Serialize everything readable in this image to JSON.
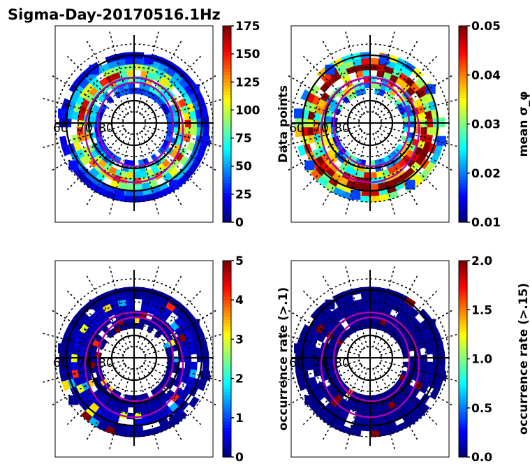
{
  "chart_data": {
    "title": "Sigma-Day-20170516.1Hz",
    "panels": [
      {
        "id": "data-points",
        "type": "heatmap",
        "projection": "polar-magnetic-lat-mlt",
        "colormap": "jet",
        "colorbar": {
          "label": "Data points",
          "vmin": 0,
          "vmax": 175,
          "ticks": [
            "0",
            "25",
            "50",
            "75",
            "100",
            "125",
            "150",
            "175"
          ]
        },
        "lat_labels": [
          "60",
          "70",
          "80"
        ],
        "auroral_oval": true,
        "annulus_values": [
          30,
          55,
          95,
          120,
          80,
          40,
          15
        ]
      },
      {
        "id": "mean-sigma-phi",
        "type": "heatmap",
        "projection": "polar-magnetic-lat-mlt",
        "colormap": "jet",
        "colorbar": {
          "label": "mean σ_φ",
          "vmin": 0.01,
          "vmax": 0.05,
          "ticks": [
            "0.01",
            "0.02",
            "0.03",
            "0.04",
            "0.05"
          ]
        },
        "lat_labels": [
          "60",
          "70",
          "80"
        ],
        "auroral_oval": true,
        "annulus_values": [
          0.022,
          0.028,
          0.034,
          0.04,
          0.046,
          0.036,
          0.03
        ]
      },
      {
        "id": "occurrence-rate-0.1",
        "type": "heatmap",
        "projection": "polar-magnetic-lat-mlt",
        "colormap": "jet",
        "colorbar": {
          "label": "occurrence rate (>.1)",
          "vmin": 0,
          "vmax": 5,
          "ticks": [
            "0",
            "1",
            "2",
            "3",
            "4",
            "5"
          ]
        },
        "lat_labels": [
          "60",
          "70",
          "80"
        ],
        "auroral_oval": true,
        "annulus_values": [
          0.1,
          0.1,
          0.2,
          0.3,
          0.4,
          0.2,
          0.1
        ],
        "hotspot_values": [
          5,
          4.2,
          3,
          1.5,
          5,
          3.3
        ]
      },
      {
        "id": "occurrence-rate-0.15",
        "type": "heatmap",
        "projection": "polar-magnetic-lat-mlt",
        "colormap": "jet",
        "colorbar": {
          "label": "occurrence rate (>.15)",
          "vmin": 0.0,
          "vmax": 2.0,
          "ticks": [
            "0.0",
            "0.5",
            "1.0",
            "1.5",
            "2.0"
          ]
        },
        "lat_labels": [
          "60",
          "70",
          "80"
        ],
        "auroral_oval": true,
        "annulus_values": [
          0.02,
          0.02,
          0.03,
          0.03,
          0.04,
          0.03,
          0.02
        ],
        "hotspot_values": [
          2.0,
          1.6,
          2.0,
          2.0
        ]
      }
    ]
  }
}
